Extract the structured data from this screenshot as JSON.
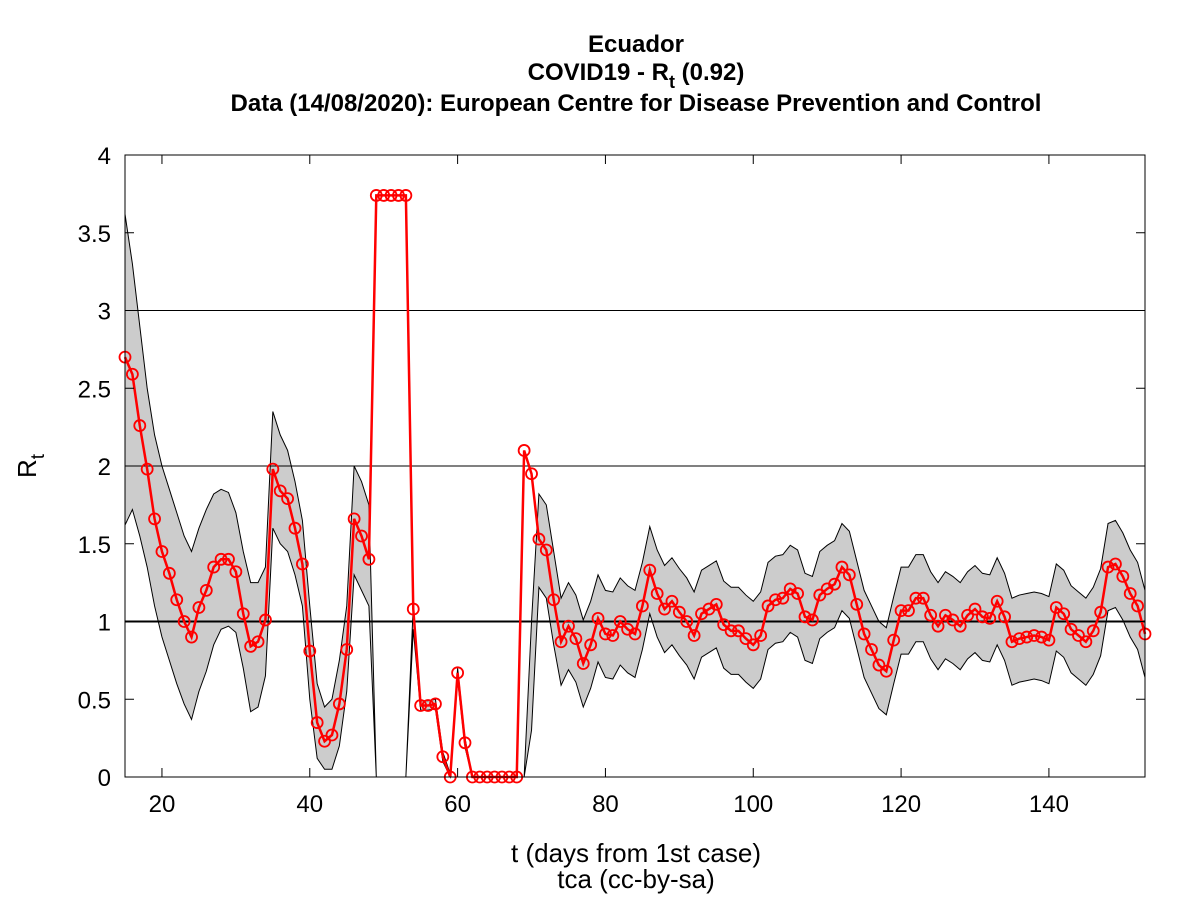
{
  "chart_data": {
    "type": "line",
    "title": "Ecuador",
    "subtitle": {
      "prefix": "COVID19 - R",
      "sub": "t",
      "suffix": " (0.92)"
    },
    "source_line": "Data (14/08/2020): European Centre for Disease Prevention and Control",
    "xlabel": "t (days from 1st case)",
    "ylabel": {
      "main": "R",
      "sub": "t"
    },
    "note": "tca (cc-by-sa)",
    "color": "#ff0000",
    "band_color": "#cccccc",
    "xlim": [
      15,
      153
    ],
    "ylim": [
      0,
      4
    ],
    "xticks": [
      20,
      40,
      60,
      80,
      100,
      120,
      140
    ],
    "yticks": [
      0,
      0.5,
      1,
      1.5,
      2,
      2.5,
      3,
      3.5,
      4
    ],
    "threshold": 1,
    "hlines": [
      2,
      3
    ],
    "x": [
      15,
      16,
      17,
      18,
      19,
      20,
      21,
      22,
      23,
      24,
      25,
      26,
      27,
      28,
      29,
      30,
      31,
      32,
      33,
      34,
      35,
      36,
      37,
      38,
      39,
      40,
      41,
      42,
      43,
      44,
      45,
      46,
      47,
      48,
      49,
      50,
      51,
      52,
      53,
      54,
      55,
      56,
      57,
      58,
      59,
      60,
      61,
      62,
      63,
      64,
      65,
      66,
      67,
      68,
      69,
      70,
      71,
      72,
      73,
      74,
      75,
      76,
      77,
      78,
      79,
      80,
      81,
      82,
      83,
      84,
      85,
      86,
      87,
      88,
      89,
      90,
      91,
      92,
      93,
      94,
      95,
      96,
      97,
      98,
      99,
      100,
      101,
      102,
      103,
      104,
      105,
      106,
      107,
      108,
      109,
      110,
      111,
      112,
      113,
      114,
      115,
      116,
      117,
      118,
      119,
      120,
      121,
      122,
      123,
      124,
      125,
      126,
      127,
      128,
      129,
      130,
      131,
      132,
      133,
      134,
      135,
      136,
      137,
      138,
      139,
      140,
      141,
      142,
      143,
      144,
      145,
      146,
      147,
      148,
      149,
      150,
      151,
      152,
      153
    ],
    "values": [
      2.7,
      2.59,
      2.26,
      1.98,
      1.66,
      1.45,
      1.31,
      1.14,
      1.0,
      0.9,
      1.09,
      1.2,
      1.35,
      1.4,
      1.4,
      1.32,
      1.05,
      0.84,
      0.87,
      1.01,
      1.98,
      1.84,
      1.79,
      1.6,
      1.37,
      0.81,
      0.35,
      0.23,
      0.27,
      0.47,
      0.82,
      1.66,
      1.55,
      1.4,
      3.74,
      3.74,
      3.74,
      3.74,
      3.74,
      1.08,
      0.46,
      0.46,
      0.47,
      0.13,
      0,
      0.67,
      0.22,
      0,
      0,
      0,
      0,
      0,
      0,
      0,
      2.1,
      1.95,
      1.53,
      1.46,
      1.14,
      0.87,
      0.97,
      0.89,
      0.73,
      0.85,
      1.02,
      0.92,
      0.91,
      1.0,
      0.95,
      0.92,
      1.1,
      1.33,
      1.18,
      1.08,
      1.13,
      1.06,
      1.0,
      0.91,
      1.05,
      1.08,
      1.11,
      0.98,
      0.94,
      0.94,
      0.89,
      0.85,
      0.91,
      1.1,
      1.14,
      1.15,
      1.21,
      1.18,
      1.03,
      1.01,
      1.17,
      1.21,
      1.24,
      1.35,
      1.3,
      1.11,
      0.92,
      0.82,
      0.72,
      0.68,
      0.88,
      1.07,
      1.07,
      1.15,
      1.15,
      1.04,
      0.97,
      1.04,
      1.01,
      0.97,
      1.04,
      1.08,
      1.03,
      1.02,
      1.13,
      1.03,
      0.87,
      0.89,
      0.9,
      0.91,
      0.9,
      0.88,
      1.09,
      1.05,
      0.95,
      0.91,
      0.87,
      0.94,
      1.06,
      1.35,
      1.37,
      1.29,
      1.18,
      1.1,
      0.92
    ],
    "band_lower": [
      1.62,
      1.72,
      1.55,
      1.35,
      1.1,
      0.9,
      0.75,
      0.6,
      0.47,
      0.37,
      0.55,
      0.68,
      0.85,
      0.95,
      0.97,
      0.93,
      0.7,
      0.42,
      0.45,
      0.65,
      1.6,
      1.5,
      1.45,
      1.3,
      1.1,
      0.5,
      0.12,
      0.05,
      0.05,
      0.2,
      0.55,
      1.3,
      1.2,
      1.1,
      0,
      0,
      0,
      0,
      0,
      0.95,
      0.43,
      0.43,
      0.44,
      0.1,
      0,
      0.63,
      0.19,
      0,
      0,
      0,
      0,
      0,
      0,
      0,
      0,
      0.3,
      1.22,
      1.15,
      0.85,
      0.59,
      0.69,
      0.61,
      0.45,
      0.57,
      0.74,
      0.64,
      0.63,
      0.72,
      0.67,
      0.64,
      0.82,
      1.05,
      0.9,
      0.8,
      0.85,
      0.78,
      0.72,
      0.63,
      0.77,
      0.8,
      0.83,
      0.7,
      0.66,
      0.66,
      0.61,
      0.57,
      0.63,
      0.82,
      0.86,
      0.87,
      0.93,
      0.9,
      0.75,
      0.73,
      0.89,
      0.93,
      0.96,
      1.07,
      1.02,
      0.83,
      0.64,
      0.54,
      0.44,
      0.4,
      0.6,
      0.79,
      0.79,
      0.87,
      0.87,
      0.76,
      0.69,
      0.76,
      0.73,
      0.69,
      0.76,
      0.8,
      0.75,
      0.74,
      0.85,
      0.75,
      0.59,
      0.61,
      0.62,
      0.63,
      0.62,
      0.6,
      0.81,
      0.77,
      0.67,
      0.63,
      0.59,
      0.66,
      0.78,
      1.07,
      1.09,
      1.01,
      0.9,
      0.82,
      0.64
    ],
    "band_upper": [
      3.62,
      3.3,
      2.9,
      2.5,
      2.2,
      2.0,
      1.85,
      1.7,
      1.55,
      1.45,
      1.6,
      1.72,
      1.82,
      1.85,
      1.83,
      1.7,
      1.45,
      1.25,
      1.25,
      1.35,
      2.35,
      2.2,
      2.1,
      1.9,
      1.65,
      1.1,
      0.6,
      0.45,
      0.5,
      0.75,
      1.1,
      2.0,
      1.9,
      1.75,
      0,
      0,
      0,
      0,
      0,
      1.1,
      0.49,
      0.49,
      0.5,
      0.16,
      0.02,
      0.7,
      0.25,
      0,
      0,
      0,
      0,
      0,
      0,
      0,
      0,
      1.0,
      1.82,
      1.75,
      1.45,
      1.15,
      1.25,
      1.17,
      1.01,
      1.13,
      1.3,
      1.2,
      1.19,
      1.28,
      1.23,
      1.2,
      1.38,
      1.61,
      1.46,
      1.36,
      1.41,
      1.34,
      1.28,
      1.19,
      1.33,
      1.36,
      1.39,
      1.26,
      1.22,
      1.22,
      1.17,
      1.13,
      1.19,
      1.38,
      1.42,
      1.43,
      1.49,
      1.46,
      1.31,
      1.29,
      1.45,
      1.49,
      1.52,
      1.63,
      1.58,
      1.39,
      1.2,
      1.1,
      1.0,
      0.96,
      1.16,
      1.35,
      1.35,
      1.43,
      1.43,
      1.32,
      1.25,
      1.32,
      1.29,
      1.25,
      1.32,
      1.36,
      1.31,
      1.3,
      1.41,
      1.31,
      1.15,
      1.17,
      1.18,
      1.19,
      1.18,
      1.16,
      1.37,
      1.33,
      1.23,
      1.19,
      1.15,
      1.22,
      1.34,
      1.63,
      1.65,
      1.57,
      1.46,
      1.38,
      1.2
    ]
  }
}
